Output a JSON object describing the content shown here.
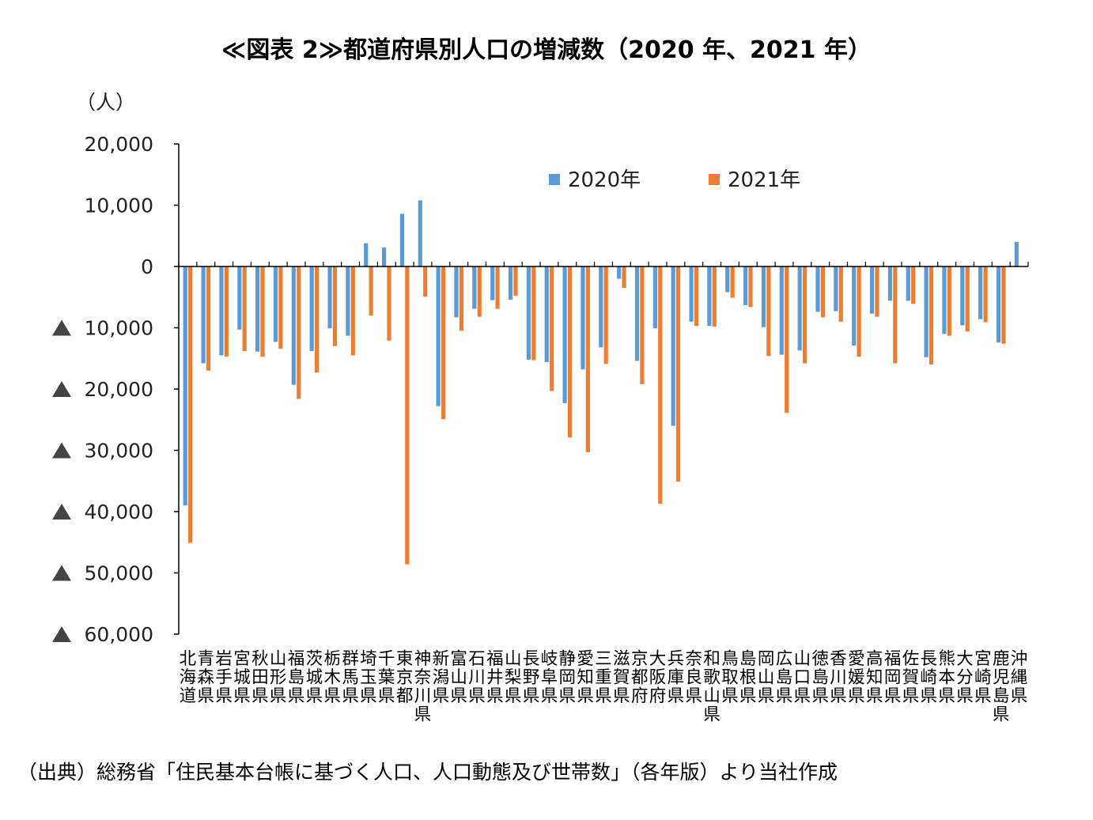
{
  "title": "≪図表 2≫都道府県別人口の増減数（2020 年、2021 年）",
  "source": "（出典）総務省「住民基本台帳に基づく人口、人口動態及び世帯数」（各年版）より当社作成",
  "colors": {
    "s2020": "#5B9BD5",
    "s2021": "#ED7D31",
    "axis": "#000000",
    "marker": "#444444"
  },
  "chart_data": {
    "type": "bar",
    "ylabel": "（人）",
    "ylim": [
      -60000,
      20000
    ],
    "yticks": [
      {
        "value": 20000,
        "label": "20,000",
        "triangle": false
      },
      {
        "value": 10000,
        "label": "10,000",
        "triangle": false
      },
      {
        "value": 0,
        "label": "0",
        "triangle": false
      },
      {
        "value": -10000,
        "label": "10,000",
        "triangle": true
      },
      {
        "value": -20000,
        "label": "20,000",
        "triangle": true
      },
      {
        "value": -30000,
        "label": "30,000",
        "triangle": true
      },
      {
        "value": -40000,
        "label": "40,000",
        "triangle": true
      },
      {
        "value": -50000,
        "label": "50,000",
        "triangle": true
      },
      {
        "value": -60000,
        "label": "60,000",
        "triangle": true
      }
    ],
    "legend_position": "top-right",
    "grid": false,
    "categories": [
      "北海道",
      "青森県",
      "岩手県",
      "宮城県",
      "秋田県",
      "山形県",
      "福島県",
      "茨城県",
      "栃木県",
      "群馬県",
      "埼玉県",
      "千葉県",
      "東京都",
      "神奈川県",
      "新潟県",
      "富山県",
      "石川県",
      "福井県",
      "山梨県",
      "長野県",
      "岐阜県",
      "静岡県",
      "愛知県",
      "三重県",
      "滋賀県",
      "京都府",
      "大阪府",
      "兵庫県",
      "奈良県",
      "和歌山県",
      "鳥取県",
      "島根県",
      "岡山県",
      "広島県",
      "山口県",
      "徳島県",
      "香川県",
      "愛媛県",
      "高知県",
      "福岡県",
      "佐賀県",
      "長崎県",
      "熊本県",
      "大分県",
      "宮崎県",
      "鹿児島県",
      "沖縄県"
    ],
    "series": [
      {
        "name": "2020年",
        "values": [
          -39000,
          -15800,
          -14500,
          -10300,
          -13900,
          -12300,
          -19300,
          -13800,
          -10100,
          -11300,
          3800,
          3100,
          8600,
          10800,
          -22800,
          -8300,
          -6900,
          -5500,
          -5400,
          -15200,
          -15600,
          -22300,
          -16800,
          -13200,
          -2000,
          -15400,
          -10100,
          -26000,
          -9000,
          -9700,
          -4200,
          -6300,
          -9900,
          -14400,
          -13700,
          -7400,
          -7300,
          -12900,
          -7700,
          -5600,
          -5600,
          -14800,
          -11000,
          -9600,
          -8600,
          -12400,
          4000
        ]
      },
      {
        "name": "2021年",
        "values": [
          -45100,
          -17000,
          -14700,
          -13800,
          -14700,
          -13400,
          -21600,
          -17300,
          -13000,
          -14500,
          -8000,
          -12100,
          -48600,
          -4900,
          -24900,
          -10500,
          -8200,
          -6900,
          -4800,
          -15300,
          -20300,
          -27900,
          -30300,
          -15900,
          -3500,
          -19200,
          -38700,
          -35100,
          -9700,
          -9800,
          -5100,
          -6600,
          -14600,
          -23900,
          -15800,
          -8300,
          -9000,
          -14700,
          -8200,
          -15800,
          -6100,
          -16000,
          -11300,
          -10600,
          -9100,
          -12600,
          null
        ]
      }
    ]
  }
}
